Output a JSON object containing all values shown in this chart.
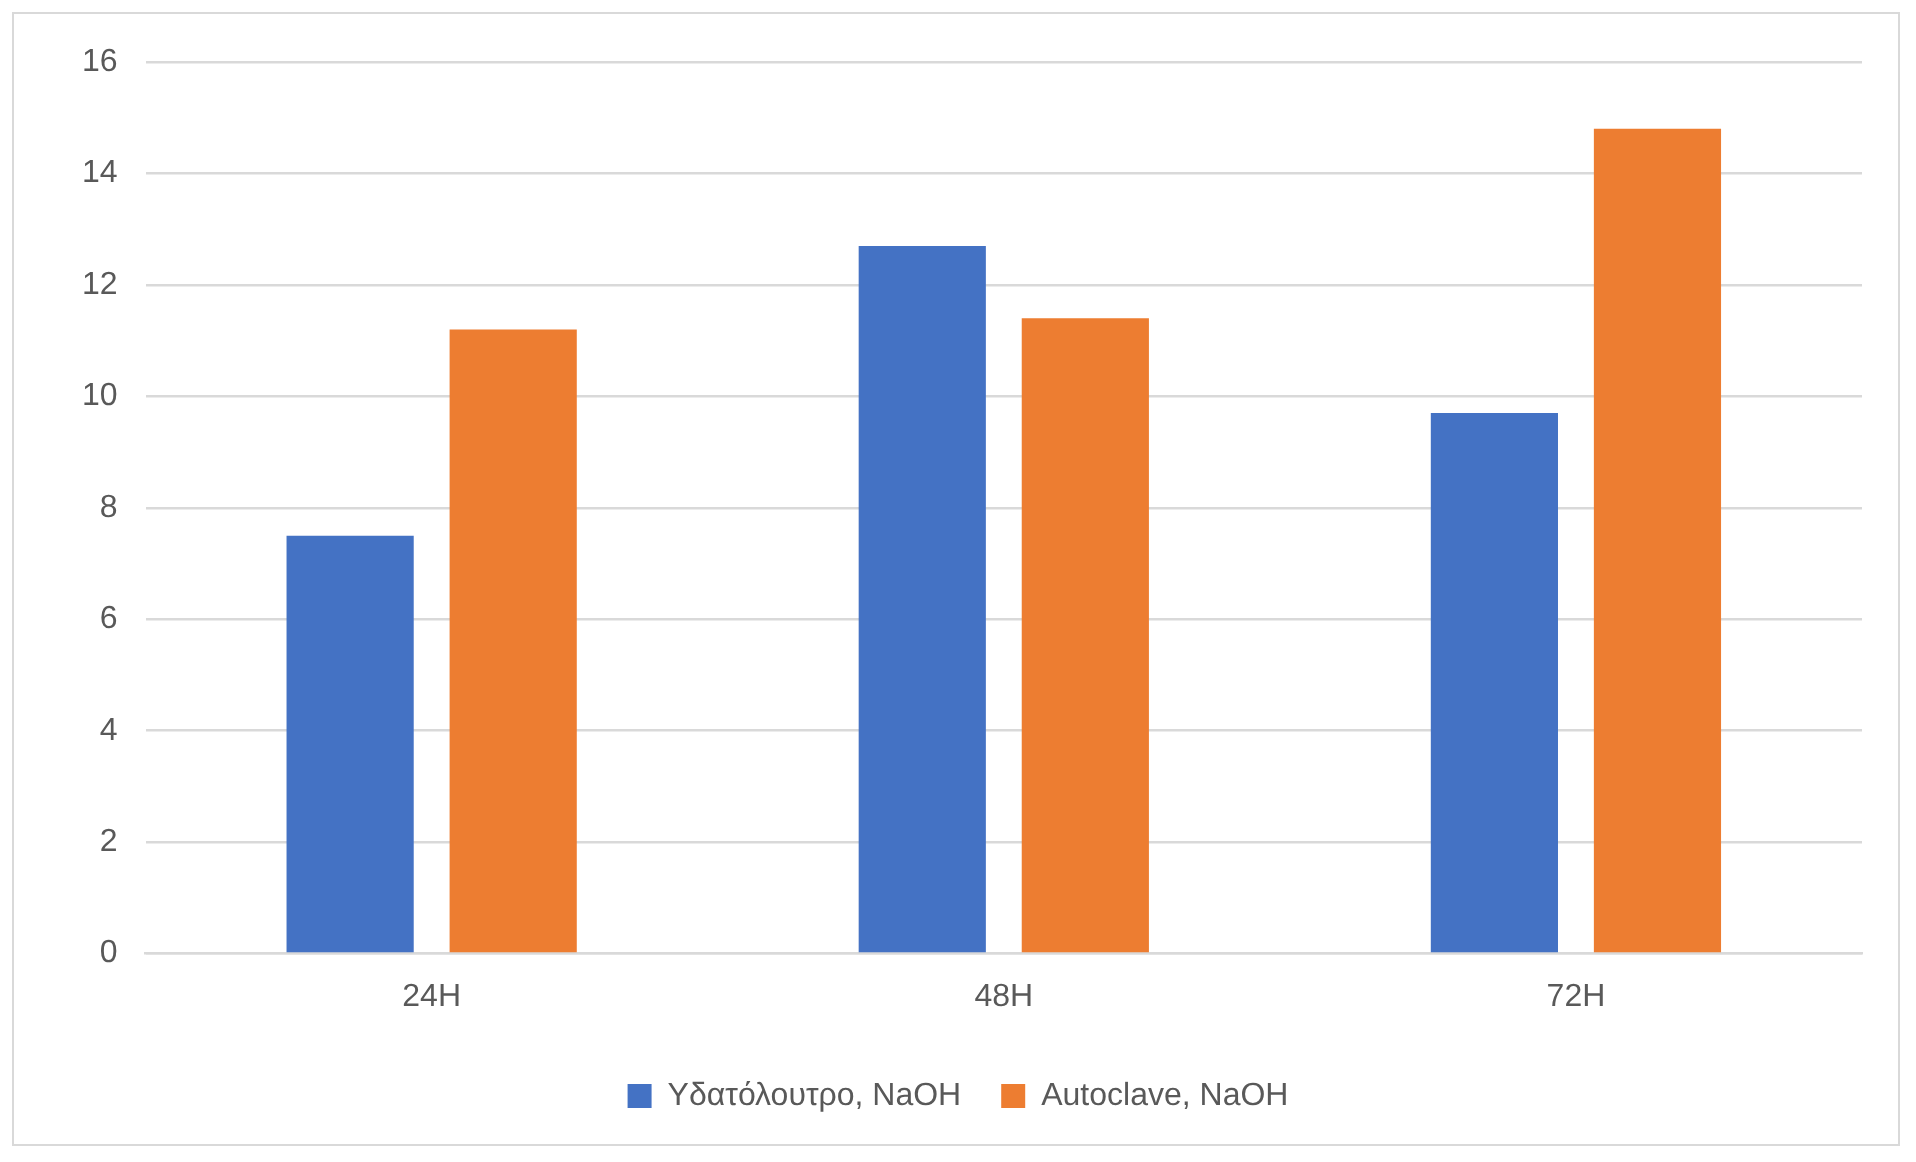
{
  "chart_data": {
    "type": "bar",
    "categories": [
      "24H",
      "48H",
      "72H"
    ],
    "series": [
      {
        "name": "Υδατόλουτρο, NaOH",
        "color": "#4472c4",
        "values": [
          7.5,
          12.7,
          9.7
        ]
      },
      {
        "name": "Autoclave, NaOH",
        "color": "#ed7d31",
        "values": [
          11.2,
          11.4,
          14.8
        ]
      }
    ],
    "ylim": [
      0,
      16
    ],
    "yticks": [
      0,
      2,
      4,
      6,
      8,
      10,
      12,
      14,
      16
    ],
    "grid": "y",
    "legend": "bottom"
  }
}
